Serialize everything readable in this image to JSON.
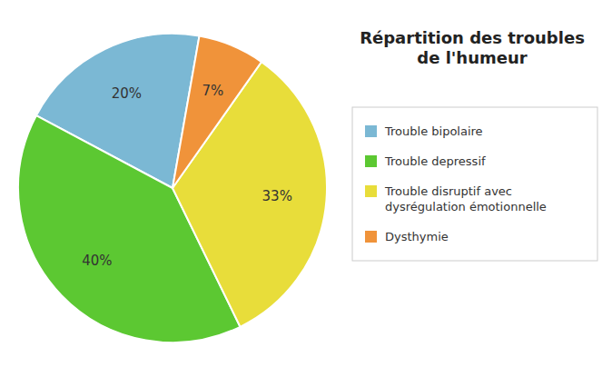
{
  "chart_data": {
    "type": "pie",
    "title": "Répartition des troubles\nde l'humeur",
    "categories": [
      "Trouble bipolaire",
      "Trouble depressif",
      "Trouble disruptif avec\ndysrégulation émotionnelle",
      "Dysthymie"
    ],
    "values": [
      20,
      40,
      33,
      7
    ],
    "value_labels": [
      "20%",
      "40%",
      "33%",
      "7%"
    ],
    "colors": [
      "#7BB8D4",
      "#5CC832",
      "#E8DD3A",
      "#F0933A"
    ],
    "data_labels": true,
    "legend": "right"
  }
}
